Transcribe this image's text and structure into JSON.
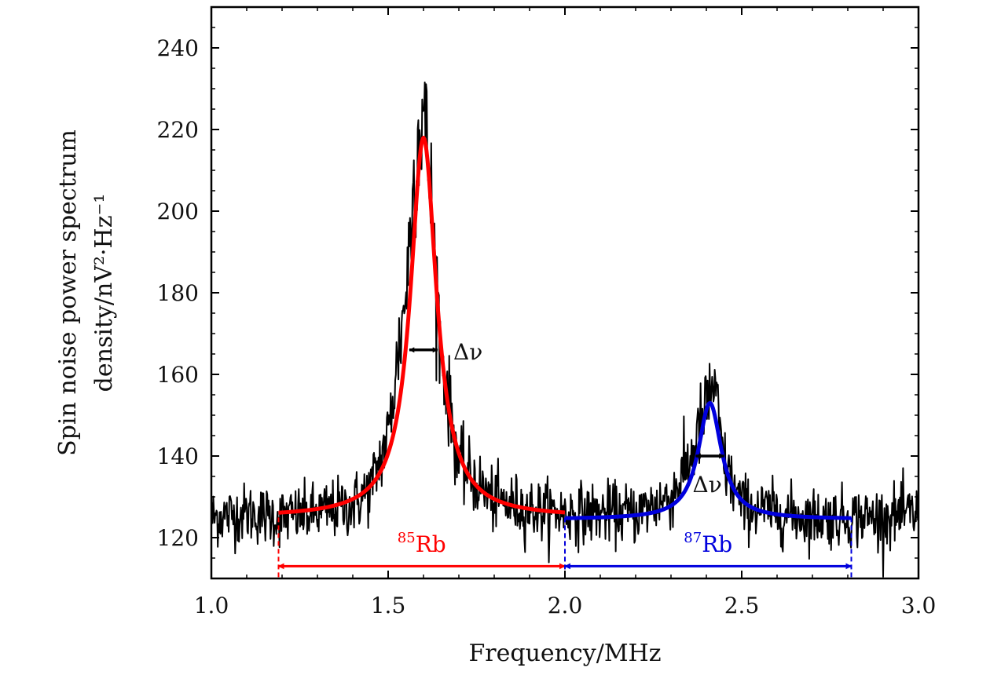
{
  "chart_data": {
    "type": "line",
    "xlabel": "Frequency/MHz",
    "ylabel_line1": "Spin noise power spectrum",
    "ylabel_line2": "density/nV²·Hz⁻¹",
    "xlim": [
      1.0,
      3.0
    ],
    "ylim": [
      110,
      250
    ],
    "x_ticks": [
      1.0,
      1.5,
      2.0,
      2.5,
      3.0
    ],
    "x_tick_labels": [
      "1.0",
      "1.5",
      "2.0",
      "2.5",
      "3.0"
    ],
    "y_ticks": [
      120,
      140,
      160,
      180,
      200,
      220,
      240
    ],
    "y_tick_labels": [
      "120",
      "140",
      "160",
      "180",
      "200",
      "220",
      "240"
    ],
    "grid": false,
    "legend": "none",
    "series": [
      {
        "kind": "measured",
        "color": "#000000",
        "x": [
          1.0,
          1.1,
          1.2,
          1.3,
          1.4,
          1.45,
          1.5,
          1.55,
          1.58,
          1.6,
          1.62,
          1.65,
          1.7,
          1.8,
          1.9,
          2.0,
          2.1,
          2.2,
          2.3,
          2.35,
          2.4,
          2.42,
          2.45,
          2.5,
          2.6,
          2.7,
          2.8,
          2.9,
          3.0
        ],
        "y": [
          125,
          126,
          125,
          126,
          128,
          132,
          145,
          180,
          215,
          225,
          205,
          165,
          138,
          129,
          127,
          126,
          126,
          126,
          130,
          138,
          152,
          158,
          138,
          128,
          126,
          125,
          125,
          125,
          126
        ]
      },
      {
        "kind": "lorentzian-fit",
        "color": "#ff0000",
        "x_range": [
          1.19,
          2.0
        ],
        "center": 1.6,
        "peak": 218,
        "baseline": 125,
        "fwhm": 0.09
      },
      {
        "kind": "lorentzian-fit",
        "color": "#0000dd",
        "x_range": [
          2.0,
          2.81
        ],
        "center": 2.41,
        "peak": 153,
        "baseline": 124.5,
        "fwhm": 0.08
      }
    ],
    "annotations": {
      "width_label_1": {
        "text": "Δν",
        "x": 1.6,
        "y": 166
      },
      "width_label_2": {
        "text": "Δν",
        "x": 2.41,
        "y": 140
      },
      "isotope_85": {
        "mass": "85",
        "element": "Rb",
        "color": "#ff0000",
        "x_from": 1.19,
        "x_to": 2.0,
        "y": 113
      },
      "isotope_87": {
        "mass": "87",
        "element": "Rb",
        "color": "#0000dd",
        "x_from": 2.0,
        "x_to": 2.81,
        "y": 113
      }
    }
  }
}
